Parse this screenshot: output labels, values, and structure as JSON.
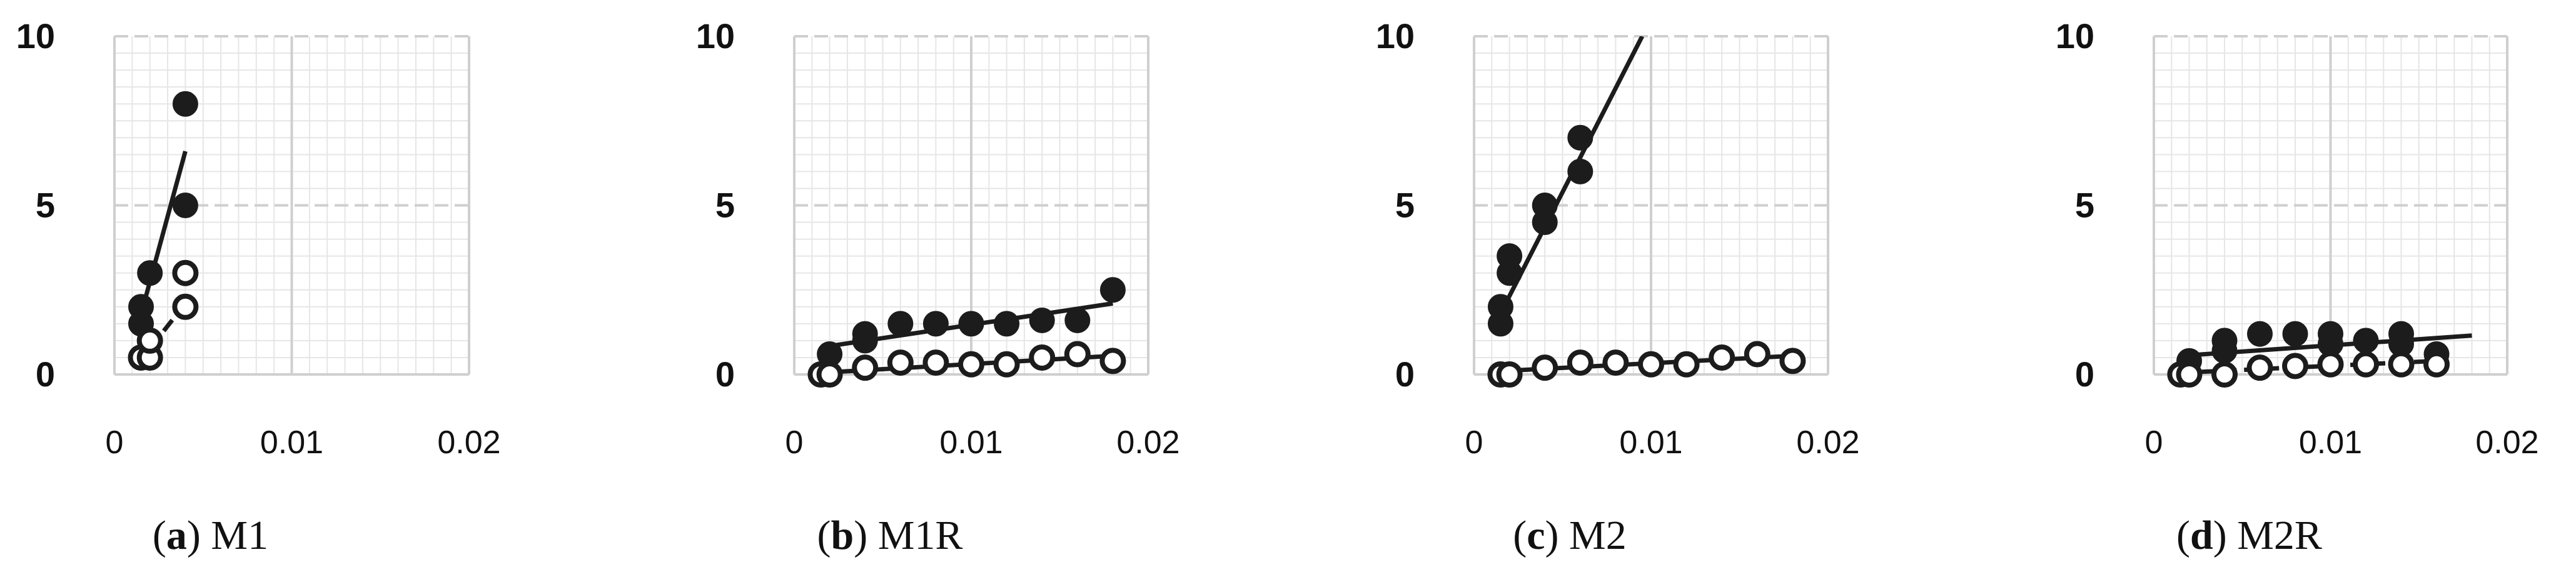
{
  "chart_data": [
    {
      "type": "scatter",
      "caption_label": "a",
      "caption_title": "M1",
      "xlim": [
        0,
        0.02
      ],
      "ylim": [
        0,
        10
      ],
      "x_ticks": [
        "0",
        "0.01",
        "0.02"
      ],
      "y_ticks": [
        "0",
        "5",
        "10"
      ],
      "grid": true,
      "series": [
        {
          "marker": "filled",
          "points": [
            [
              0.0015,
              2
            ],
            [
              0.0015,
              1.5
            ],
            [
              0.002,
              3
            ],
            [
              0.004,
              8
            ],
            [
              0.004,
              5
            ]
          ],
          "trend": [
            [
              0.0012,
              1.2
            ],
            [
              0.004,
              6.6
            ]
          ],
          "trend_style": "solid"
        },
        {
          "marker": "open",
          "points": [
            [
              0.0015,
              0.5
            ],
            [
              0.002,
              0.5
            ],
            [
              0.002,
              1
            ],
            [
              0.004,
              3
            ],
            [
              0.004,
              2
            ]
          ],
          "trend": [
            [
              0.0013,
              0.3
            ],
            [
              0.004,
              2.1
            ]
          ],
          "trend_style": "dashed"
        }
      ]
    },
    {
      "type": "scatter",
      "caption_label": "b",
      "caption_title": "M1R",
      "xlim": [
        0,
        0.02
      ],
      "ylim": [
        0,
        10
      ],
      "x_ticks": [
        "0",
        "0.01",
        "0.02"
      ],
      "y_ticks": [
        "0",
        "5",
        "10"
      ],
      "grid": true,
      "series": [
        {
          "marker": "filled",
          "points": [
            [
              0.002,
              0.6
            ],
            [
              0.004,
              1.2
            ],
            [
              0.004,
              1
            ],
            [
              0.006,
              1.5
            ],
            [
              0.008,
              1.5
            ],
            [
              0.01,
              1.5
            ],
            [
              0.012,
              1.5
            ],
            [
              0.014,
              1.6
            ],
            [
              0.016,
              1.6
            ],
            [
              0.018,
              2.5
            ]
          ],
          "trend": [
            [
              0.0015,
              0.8
            ],
            [
              0.018,
              2.1
            ]
          ],
          "trend_style": "solid"
        },
        {
          "marker": "open",
          "points": [
            [
              0.0015,
              0
            ],
            [
              0.002,
              0
            ],
            [
              0.004,
              0.2
            ],
            [
              0.006,
              0.35
            ],
            [
              0.008,
              0.35
            ],
            [
              0.01,
              0.3
            ],
            [
              0.012,
              0.3
            ],
            [
              0.014,
              0.5
            ],
            [
              0.016,
              0.6
            ],
            [
              0.018,
              0.4
            ]
          ],
          "trend": [
            [
              0.0015,
              0.05
            ],
            [
              0.018,
              0.55
            ]
          ],
          "trend_style": "solid"
        }
      ]
    },
    {
      "type": "scatter",
      "caption_label": "c",
      "caption_title": "M2",
      "xlim": [
        0,
        0.02
      ],
      "ylim": [
        0,
        10
      ],
      "x_ticks": [
        "0",
        "0.01",
        "0.02"
      ],
      "y_ticks": [
        "0",
        "5",
        "10"
      ],
      "grid": true,
      "series": [
        {
          "marker": "filled",
          "points": [
            [
              0.0015,
              2
            ],
            [
              0.0015,
              1.5
            ],
            [
              0.002,
              3.5
            ],
            [
              0.002,
              3
            ],
            [
              0.004,
              5
            ],
            [
              0.004,
              4.5
            ],
            [
              0.006,
              7
            ],
            [
              0.006,
              6
            ]
          ],
          "trend": [
            [
              0.0012,
              1.5
            ],
            [
              0.0095,
              10
            ]
          ],
          "trend_style": "solid"
        },
        {
          "marker": "open",
          "points": [
            [
              0.0015,
              0
            ],
            [
              0.002,
              0
            ],
            [
              0.004,
              0.2
            ],
            [
              0.006,
              0.35
            ],
            [
              0.008,
              0.35
            ],
            [
              0.01,
              0.3
            ],
            [
              0.012,
              0.3
            ],
            [
              0.014,
              0.5
            ],
            [
              0.016,
              0.6
            ],
            [
              0.018,
              0.4
            ]
          ],
          "trend": [
            [
              0.0015,
              0.1
            ],
            [
              0.018,
              0.55
            ]
          ],
          "trend_style": "solid"
        }
      ]
    },
    {
      "type": "scatter",
      "caption_label": "d",
      "caption_title": "M2R",
      "xlim": [
        0,
        0.02
      ],
      "ylim": [
        0,
        10
      ],
      "x_ticks": [
        "0",
        "0.01",
        "0.02"
      ],
      "y_ticks": [
        "0",
        "5",
        "10"
      ],
      "grid": true,
      "series": [
        {
          "marker": "filled",
          "points": [
            [
              0.0015,
              0
            ],
            [
              0.002,
              0.4
            ],
            [
              0.004,
              1
            ],
            [
              0.004,
              0.7
            ],
            [
              0.006,
              1.2
            ],
            [
              0.008,
              1.2
            ],
            [
              0.01,
              1.2
            ],
            [
              0.01,
              0.9
            ],
            [
              0.012,
              1
            ],
            [
              0.014,
              1.2
            ],
            [
              0.014,
              0.9
            ],
            [
              0.016,
              0.6
            ]
          ],
          "trend": [
            [
              0.0015,
              0.55
            ],
            [
              0.018,
              1.15
            ]
          ],
          "trend_style": "solid"
        },
        {
          "marker": "open",
          "points": [
            [
              0.0015,
              0
            ],
            [
              0.002,
              0
            ],
            [
              0.004,
              0
            ],
            [
              0.006,
              0.2
            ],
            [
              0.008,
              0.25
            ],
            [
              0.01,
              0.3
            ],
            [
              0.012,
              0.3
            ],
            [
              0.014,
              0.3
            ],
            [
              0.016,
              0.3
            ]
          ],
          "trend": [
            [
              0.0015,
              0.05
            ],
            [
              0.016,
              0.4
            ]
          ],
          "trend_style": "dashed"
        }
      ]
    }
  ]
}
